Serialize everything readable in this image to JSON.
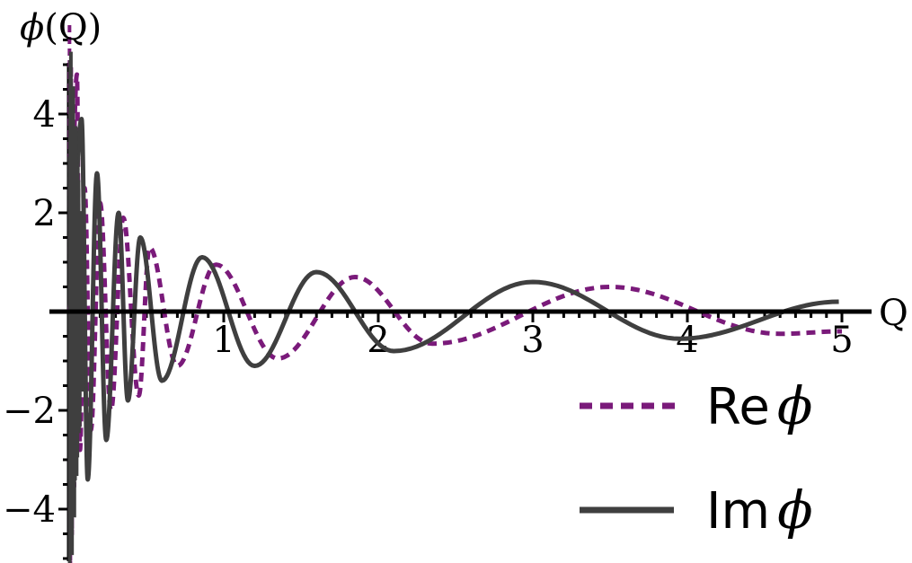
{
  "chart_data": {
    "type": "line",
    "ylabel_prefix": "ϕ",
    "ylabel_suffix": "(Q)",
    "xlabel": "Q",
    "xlim": [
      0,
      5.1
    ],
    "ylim": [
      -6.2,
      6.2
    ],
    "x_ticks": [
      1,
      2,
      3,
      4,
      5
    ],
    "y_ticks": [
      -4,
      -2,
      2,
      4
    ],
    "series": [
      {
        "name_prefix": "Re",
        "name_symbol": "ϕ",
        "style": "dashed",
        "color": "#7a1a7a",
        "points": [
          [
            0.05,
            4.8
          ],
          [
            0.07,
            -2.8
          ],
          [
            0.1,
            2.5
          ],
          [
            0.14,
            -2.4
          ],
          [
            0.2,
            2.2
          ],
          [
            0.27,
            -2.0
          ],
          [
            0.35,
            1.9
          ],
          [
            0.45,
            -1.7
          ],
          [
            0.52,
            1.3
          ],
          [
            0.7,
            -1.1
          ],
          [
            0.95,
            0.95
          ],
          [
            1.35,
            -0.95
          ],
          [
            1.85,
            0.7
          ],
          [
            2.35,
            -0.65
          ],
          [
            3.5,
            0.5
          ],
          [
            4.6,
            -0.45
          ],
          [
            5.0,
            -0.4
          ]
        ]
      },
      {
        "name_prefix": "Im",
        "name_symbol": "ϕ",
        "style": "solid",
        "color": "#3f3f3f",
        "points": [
          [
            0.08,
            3.9
          ],
          [
            0.12,
            -3.4
          ],
          [
            0.18,
            2.8
          ],
          [
            0.24,
            -2.6
          ],
          [
            0.32,
            2.0
          ],
          [
            0.38,
            -1.8
          ],
          [
            0.46,
            1.5
          ],
          [
            0.6,
            -1.4
          ],
          [
            0.86,
            1.1
          ],
          [
            1.2,
            -1.1
          ],
          [
            1.6,
            0.8
          ],
          [
            2.1,
            -0.8
          ],
          [
            3.0,
            0.6
          ],
          [
            3.95,
            -0.55
          ],
          [
            4.98,
            0.2
          ]
        ]
      }
    ],
    "legend_placement": "bottom-right",
    "grid": false
  }
}
